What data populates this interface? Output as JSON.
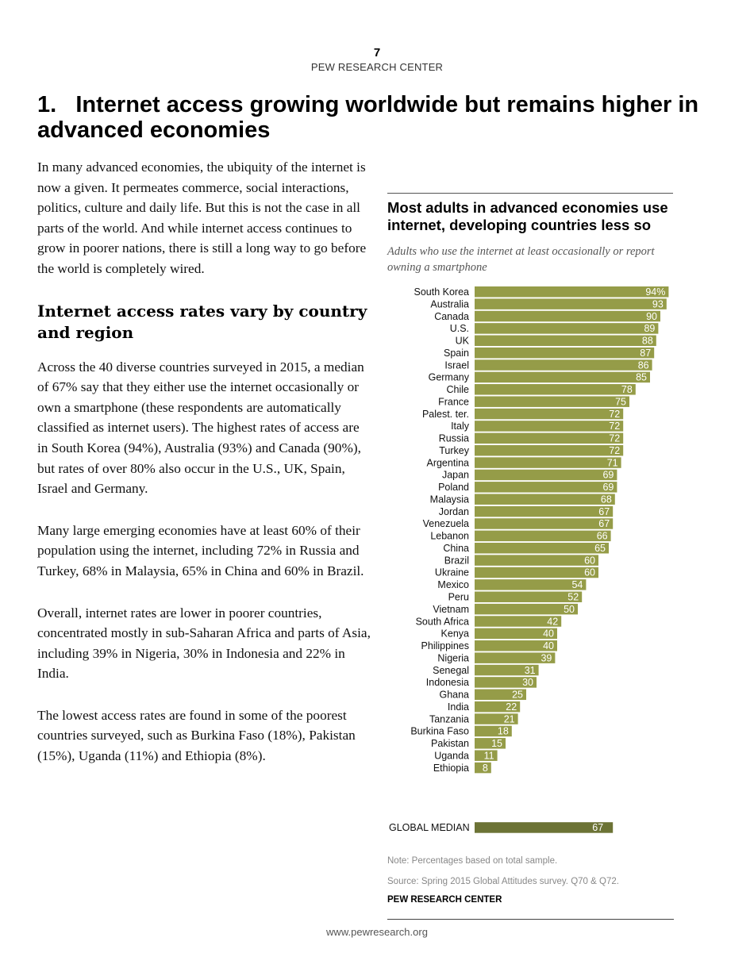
{
  "page": {
    "number": "7",
    "header": "PEW RESEARCH CENTER",
    "footer_url": "www.pewresearch.org"
  },
  "article": {
    "title": "1.   Internet access growing worldwide but remains higher in advanced economies",
    "intro": "In many advanced economies, the ubiquity of the internet is now a given. It permeates commerce, social interactions, politics, culture and daily life. But this is not the case in all parts of the world. And while internet access continues to grow in poorer nations, there is still a long way to go before the world is completely wired.",
    "subheading": "Internet access rates vary by country and region",
    "paragraphs": [
      "Across the 40 diverse countries surveyed in 2015, a median of 67% say that they either use the internet occasionally or own a smartphone (these respondents are automatically classified as internet users). The highest rates of access are in South Korea (94%), Australia (93%) and Canada (90%), but rates of over 80% also occur in the U.S., UK, Spain, Israel and Germany.",
      "Many large emerging economies have at least 60% of their population using the internet, including 72% in Russia and Turkey, 68% in Malaysia, 65% in China and 60% in Brazil.",
      "Overall, internet rates are lower in poorer countries, concentrated mostly in sub-Saharan Africa and parts of Asia, including 39% in Nigeria, 30% in Indonesia and 22% in India.",
      "The lowest access rates are found in some of the poorest countries surveyed, such as Burkina Faso (18%), Pakistan (15%), Uganda (11%) and Ethiopia (8%)."
    ]
  },
  "chart_data": {
    "type": "bar",
    "orientation": "horizontal",
    "title": "Most adults in advanced economies use internet, developing countries less so",
    "subtitle": "Adults who use the internet at least occasionally or report owning a smartphone",
    "categories": [
      "South Korea",
      "Australia",
      "Canada",
      "U.S.",
      "UK",
      "Spain",
      "Israel",
      "Germany",
      "Chile",
      "France",
      "Palest. ter.",
      "Italy",
      "Russia",
      "Turkey",
      "Argentina",
      "Japan",
      "Poland",
      "Malaysia",
      "Jordan",
      "Venezuela",
      "Lebanon",
      "China",
      "Brazil",
      "Ukraine",
      "Mexico",
      "Peru",
      "Vietnam",
      "South Africa",
      "Kenya",
      "Philippines",
      "Nigeria",
      "Senegal",
      "Indonesia",
      "Ghana",
      "India",
      "Tanzania",
      "Burkina Faso",
      "Pakistan",
      "Uganda",
      "Ethiopia"
    ],
    "values": [
      94,
      93,
      90,
      89,
      88,
      87,
      86,
      85,
      78,
      75,
      72,
      72,
      72,
      72,
      71,
      69,
      69,
      68,
      67,
      67,
      66,
      65,
      60,
      60,
      54,
      52,
      50,
      42,
      40,
      40,
      39,
      31,
      30,
      25,
      22,
      21,
      18,
      15,
      11,
      8
    ],
    "unit_suffix_first": "%",
    "median": {
      "label": "GLOBAL MEDIAN",
      "value": 67
    },
    "xlim": [
      0,
      100
    ],
    "grid": false,
    "colors": {
      "bar": "#959c48",
      "median": "#6c7335",
      "label": "#ffffff"
    },
    "note": "Note: Percentages based on total sample.",
    "source": "Source: Spring 2015 Global Attitudes survey. Q70 & Q72.",
    "brand": "PEW RESEARCH CENTER"
  }
}
